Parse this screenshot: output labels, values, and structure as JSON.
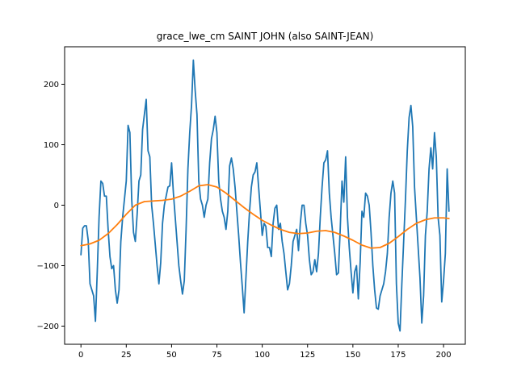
{
  "chart_data": {
    "type": "line",
    "title": "grace_lwe_cm SAINT JOHN (also SAINT-JEAN)",
    "xlabel": "",
    "ylabel": "",
    "xlim": [
      -9,
      212
    ],
    "ylim": [
      -230,
      262
    ],
    "xticks": [
      0,
      25,
      50,
      75,
      100,
      125,
      150,
      175,
      200
    ],
    "yticks": [
      -200,
      -100,
      0,
      100,
      200
    ],
    "grid": false,
    "legend": "none",
    "colors": {
      "raw": "#1f77b4",
      "trend": "#ff7f0e"
    },
    "series": [
      {
        "values": [
          [
            0,
            -82
          ],
          [
            1,
            -38
          ],
          [
            2,
            -34
          ],
          [
            3,
            -34
          ],
          [
            4,
            -58
          ],
          [
            5,
            -130
          ],
          [
            6,
            -140
          ],
          [
            7,
            -150
          ],
          [
            8,
            -192
          ],
          [
            9,
            -110
          ],
          [
            10,
            -20
          ],
          [
            11,
            40
          ],
          [
            12,
            36
          ],
          [
            13,
            15
          ],
          [
            14,
            15
          ],
          [
            15,
            -40
          ],
          [
            16,
            -85
          ],
          [
            17,
            -105
          ],
          [
            18,
            -100
          ],
          [
            19,
            -140
          ],
          [
            20,
            -162
          ],
          [
            21,
            -140
          ],
          [
            22,
            -60
          ],
          [
            23,
            -20
          ],
          [
            24,
            10
          ],
          [
            25,
            40
          ],
          [
            26,
            132
          ],
          [
            27,
            120
          ],
          [
            28,
            10
          ],
          [
            29,
            -45
          ],
          [
            30,
            -60
          ],
          [
            31,
            -15
          ],
          [
            32,
            40
          ],
          [
            33,
            50
          ],
          [
            34,
            125
          ],
          [
            35,
            150
          ],
          [
            36,
            175
          ],
          [
            37,
            90
          ],
          [
            38,
            80
          ],
          [
            39,
            0
          ],
          [
            40,
            -30
          ],
          [
            41,
            -65
          ],
          [
            42,
            -100
          ],
          [
            43,
            -130
          ],
          [
            44,
            -95
          ],
          [
            45,
            -30
          ],
          [
            46,
            0
          ],
          [
            47,
            15
          ],
          [
            48,
            30
          ],
          [
            49,
            32
          ],
          [
            50,
            70
          ],
          [
            51,
            20
          ],
          [
            52,
            -20
          ],
          [
            53,
            -60
          ],
          [
            54,
            -100
          ],
          [
            55,
            -125
          ],
          [
            56,
            -147
          ],
          [
            57,
            -125
          ],
          [
            58,
            -40
          ],
          [
            59,
            60
          ],
          [
            60,
            120
          ],
          [
            61,
            165
          ],
          [
            62,
            240
          ],
          [
            63,
            190
          ],
          [
            64,
            150
          ],
          [
            65,
            40
          ],
          [
            66,
            10
          ],
          [
            67,
            0
          ],
          [
            68,
            -20
          ],
          [
            69,
            0
          ],
          [
            70,
            10
          ],
          [
            71,
            70
          ],
          [
            72,
            110
          ],
          [
            73,
            125
          ],
          [
            74,
            147
          ],
          [
            75,
            120
          ],
          [
            76,
            40
          ],
          [
            77,
            10
          ],
          [
            78,
            -10
          ],
          [
            79,
            -20
          ],
          [
            80,
            -40
          ],
          [
            81,
            -10
          ],
          [
            82,
            65
          ],
          [
            83,
            78
          ],
          [
            84,
            60
          ],
          [
            85,
            30
          ],
          [
            86,
            -10
          ],
          [
            87,
            -50
          ],
          [
            88,
            -95
          ],
          [
            89,
            -135
          ],
          [
            90,
            -178
          ],
          [
            91,
            -120
          ],
          [
            92,
            -60
          ],
          [
            93,
            -10
          ],
          [
            94,
            30
          ],
          [
            95,
            50
          ],
          [
            96,
            55
          ],
          [
            97,
            70
          ],
          [
            98,
            30
          ],
          [
            99,
            -10
          ],
          [
            100,
            -50
          ],
          [
            101,
            -30
          ],
          [
            102,
            -35
          ],
          [
            103,
            -70
          ],
          [
            104,
            -70
          ],
          [
            105,
            -85
          ],
          [
            106,
            -30
          ],
          [
            107,
            -5
          ],
          [
            108,
            0
          ],
          [
            109,
            -40
          ],
          [
            110,
            -30
          ],
          [
            111,
            -60
          ],
          [
            112,
            -80
          ],
          [
            113,
            -110
          ],
          [
            114,
            -140
          ],
          [
            115,
            -130
          ],
          [
            116,
            -100
          ],
          [
            117,
            -60
          ],
          [
            118,
            -50
          ],
          [
            119,
            -40
          ],
          [
            120,
            -75
          ],
          [
            121,
            -30
          ],
          [
            122,
            0
          ],
          [
            123,
            0
          ],
          [
            124,
            -30
          ],
          [
            125,
            -50
          ],
          [
            126,
            -90
          ],
          [
            127,
            -115
          ],
          [
            128,
            -110
          ],
          [
            129,
            -90
          ],
          [
            130,
            -110
          ],
          [
            131,
            -80
          ],
          [
            132,
            -20
          ],
          [
            133,
            30
          ],
          [
            134,
            70
          ],
          [
            135,
            75
          ],
          [
            136,
            90
          ],
          [
            137,
            20
          ],
          [
            138,
            -20
          ],
          [
            139,
            -50
          ],
          [
            140,
            -80
          ],
          [
            141,
            -115
          ],
          [
            142,
            -112
          ],
          [
            143,
            -40
          ],
          [
            144,
            40
          ],
          [
            145,
            5
          ],
          [
            146,
            80
          ],
          [
            147,
            -20
          ],
          [
            148,
            -70
          ],
          [
            149,
            -110
          ],
          [
            150,
            -145
          ],
          [
            151,
            -110
          ],
          [
            152,
            -100
          ],
          [
            153,
            -155
          ],
          [
            154,
            -95
          ],
          [
            155,
            -10
          ],
          [
            156,
            -20
          ],
          [
            157,
            20
          ],
          [
            158,
            15
          ],
          [
            159,
            0
          ],
          [
            160,
            -45
          ],
          [
            161,
            -100
          ],
          [
            162,
            -140
          ],
          [
            163,
            -170
          ],
          [
            164,
            -172
          ],
          [
            165,
            -150
          ],
          [
            166,
            -140
          ],
          [
            167,
            -130
          ],
          [
            168,
            -110
          ],
          [
            169,
            -80
          ],
          [
            170,
            -20
          ],
          [
            171,
            20
          ],
          [
            172,
            40
          ],
          [
            173,
            20
          ],
          [
            174,
            -130
          ],
          [
            175,
            -195
          ],
          [
            176,
            -208
          ],
          [
            177,
            -130
          ],
          [
            178,
            -60
          ],
          [
            179,
            10
          ],
          [
            180,
            90
          ],
          [
            181,
            145
          ],
          [
            182,
            165
          ],
          [
            183,
            130
          ],
          [
            184,
            30
          ],
          [
            185,
            -20
          ],
          [
            186,
            -70
          ],
          [
            187,
            -120
          ],
          [
            188,
            -195
          ],
          [
            189,
            -150
          ],
          [
            190,
            -50
          ],
          [
            191,
            -10
          ],
          [
            192,
            60
          ],
          [
            193,
            95
          ],
          [
            194,
            60
          ],
          [
            195,
            120
          ],
          [
            196,
            80
          ],
          [
            197,
            -20
          ],
          [
            198,
            -50
          ],
          [
            199,
            -160
          ],
          [
            200,
            -125
          ],
          [
            201,
            -80
          ],
          [
            202,
            60
          ],
          [
            203,
            -10
          ]
        ]
      },
      {
        "values": [
          [
            0,
            -67
          ],
          [
            5,
            -64
          ],
          [
            10,
            -58
          ],
          [
            15,
            -47
          ],
          [
            20,
            -32
          ],
          [
            25,
            -15
          ],
          [
            30,
            0
          ],
          [
            35,
            6
          ],
          [
            40,
            7
          ],
          [
            45,
            8
          ],
          [
            50,
            10
          ],
          [
            55,
            15
          ],
          [
            60,
            23
          ],
          [
            65,
            32
          ],
          [
            70,
            34
          ],
          [
            75,
            30
          ],
          [
            80,
            20
          ],
          [
            85,
            8
          ],
          [
            90,
            -4
          ],
          [
            95,
            -15
          ],
          [
            100,
            -25
          ],
          [
            105,
            -33
          ],
          [
            110,
            -40
          ],
          [
            115,
            -45
          ],
          [
            120,
            -47
          ],
          [
            125,
            -46
          ],
          [
            130,
            -43
          ],
          [
            135,
            -42
          ],
          [
            140,
            -45
          ],
          [
            145,
            -51
          ],
          [
            150,
            -58
          ],
          [
            155,
            -66
          ],
          [
            160,
            -71
          ],
          [
            165,
            -70
          ],
          [
            170,
            -63
          ],
          [
            175,
            -52
          ],
          [
            180,
            -40
          ],
          [
            185,
            -30
          ],
          [
            190,
            -24
          ],
          [
            195,
            -21
          ],
          [
            200,
            -21
          ],
          [
            203,
            -22
          ]
        ]
      }
    ]
  }
}
